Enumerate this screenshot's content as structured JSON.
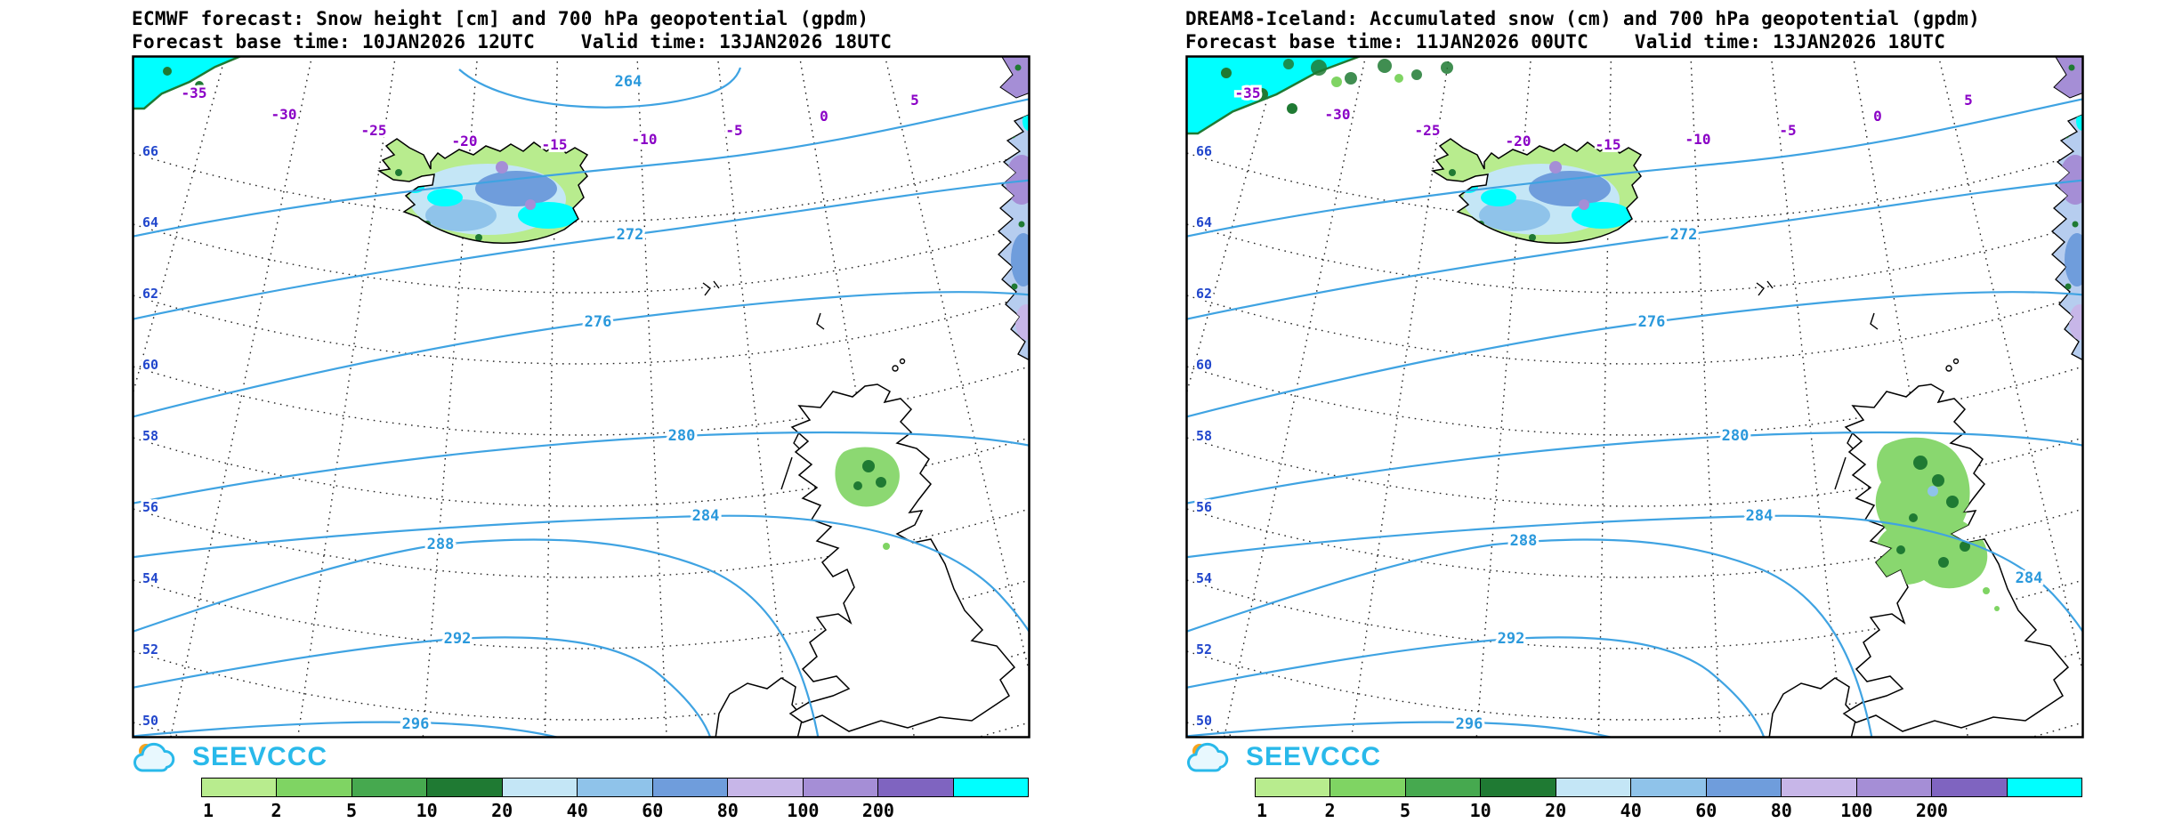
{
  "panels": [
    {
      "title": "ECMWF forecast: Snow height [cm] and 700 hPa geopotential (gpdm)",
      "subtitle": "Forecast base time: 10JAN2026 12UTC    Valid time: 13JAN2026 18UTC",
      "contour_labels": [
        "264",
        "272",
        "276",
        "280",
        "284",
        "288",
        "292",
        "296"
      ]
    },
    {
      "title": "DREAM8-Iceland: Accumulated snow (cm) and 700 hPa geopotential (gpdm)",
      "subtitle": "Forecast base time: 11JAN2026 00UTC    Valid time: 13JAN2026 18UTC",
      "contour_labels": [
        "272",
        "276",
        "280",
        "284",
        "288",
        "292",
        "296",
        "284"
      ]
    }
  ],
  "map": {
    "lon_labels": [
      "-35",
      "-30",
      "-25",
      "-20",
      "-15",
      "-10",
      "-5",
      "0",
      "5"
    ],
    "lat_labels": [
      "66",
      "64",
      "62",
      "60",
      "58",
      "56",
      "54",
      "52",
      "50"
    ]
  },
  "logo": {
    "text": "SEEVCCC"
  },
  "legend": {
    "values": [
      "1",
      "2",
      "5",
      "10",
      "20",
      "40",
      "60",
      "80",
      "100",
      "200"
    ],
    "colors": [
      "#b8ec8e",
      "#7fd463",
      "#46a94f",
      "#1f7a33",
      "#c4e6f6",
      "#8fc3ea",
      "#6f9ddc",
      "#c7b6e8",
      "#a58ed6",
      "#7f64c0",
      "#00ffff"
    ]
  },
  "colors": {
    "contour": "#3fa3e2",
    "contour_label": "#2b99dc",
    "lon_label": "#8a00c6",
    "lat_label": "#2247cc",
    "coast": "#000000",
    "graticule": "#222222",
    "logo": "#29b9ea",
    "logo_sun": "#f6a41f"
  }
}
